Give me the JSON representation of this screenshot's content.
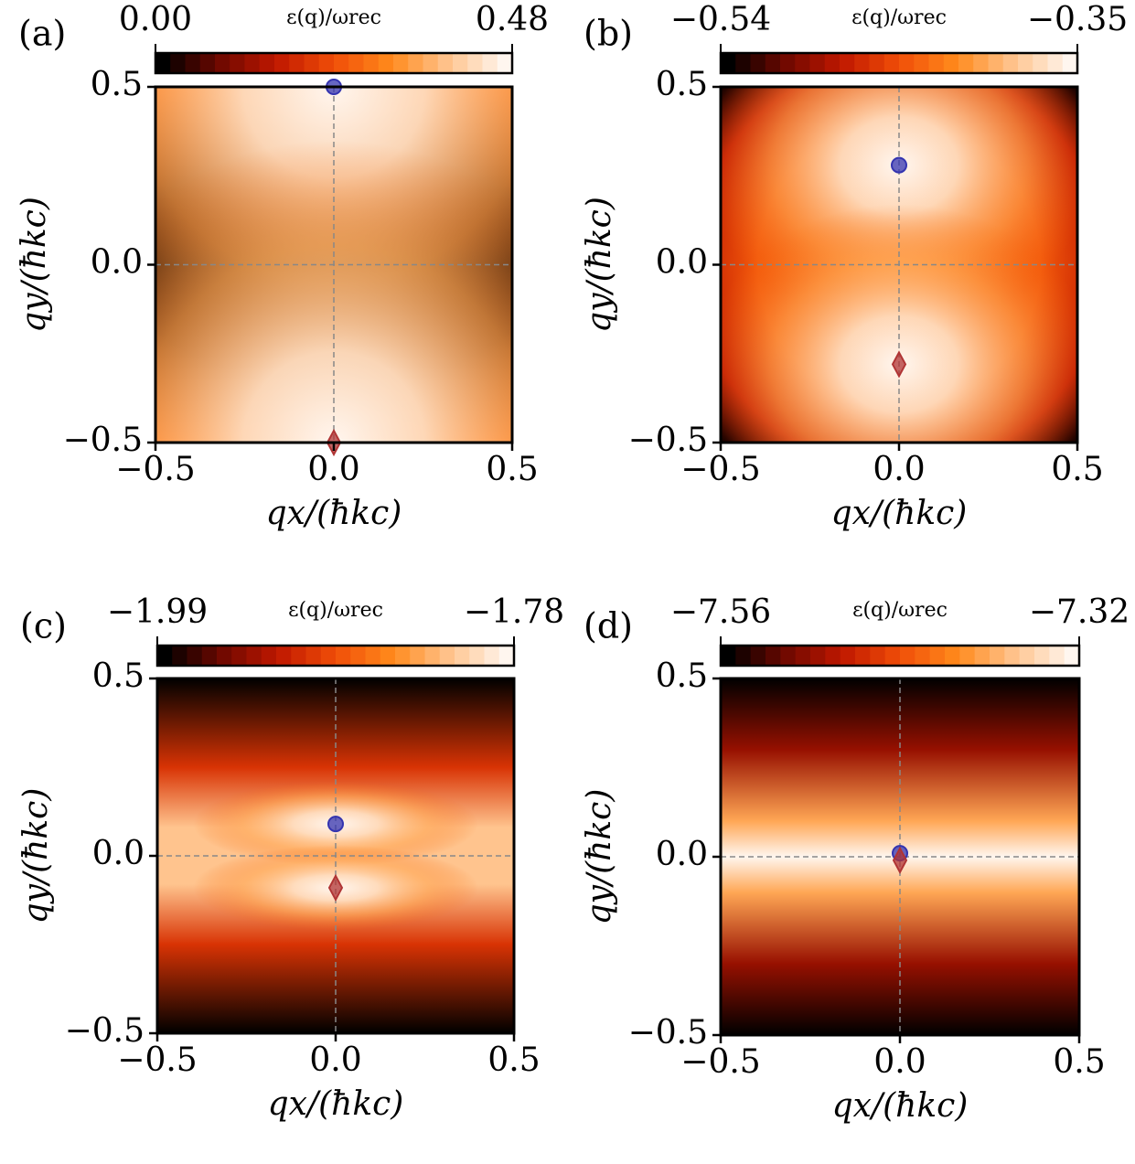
{
  "chart_data": [
    {
      "type": "contour",
      "panel_label": "(a)",
      "colorbar_label": "ε(q)/ωrec",
      "clim": [
        0,
        0.48
      ],
      "cticks": [
        {
          "value": 0,
          "label": "0.00"
        },
        {
          "value": 0.48,
          "label": "0.48"
        }
      ],
      "colormap": [
        "#000000",
        "#6e0800",
        "#c01800",
        "#f04e08",
        "#ff8a1c",
        "#ffc48e",
        "#fff6ef"
      ],
      "xlabel": "qx/(ħkc)",
      "ylabel": "qy/(ħkc)",
      "xlim": [
        -0.5,
        0.5
      ],
      "ylim": [
        -0.5,
        0.5
      ],
      "xticks": [
        {
          "value": -0.5,
          "label": "−0.5"
        },
        {
          "value": 0,
          "label": "0.0"
        },
        {
          "value": 0.5,
          "label": "0.5"
        }
      ],
      "yticks": [
        {
          "value": -0.5,
          "label": "−0.5"
        },
        {
          "value": 0,
          "label": "0.0"
        },
        {
          "value": 0.5,
          "label": "0.5"
        }
      ],
      "series": [
        {
          "marker": "circle",
          "color": "#3434b0",
          "x": [
            0
          ],
          "y": [
            0.5
          ]
        },
        {
          "marker": "diamond",
          "color": "#b03434",
          "x": [
            0
          ],
          "y": [
            -0.5
          ]
        }
      ]
    },
    {
      "type": "contour",
      "panel_label": "(b)",
      "colorbar_label": "ε(q)/ωrec",
      "clim": [
        -0.54,
        -0.35
      ],
      "cticks": [
        {
          "value": -0.54,
          "label": "−0.54"
        },
        {
          "value": -0.35,
          "label": "−0.35"
        }
      ],
      "colormap": [
        "#000000",
        "#6e0800",
        "#c01800",
        "#f04e08",
        "#ff8a1c",
        "#ffc48e",
        "#fff6ef"
      ],
      "xlabel": "qx/(ħkc)",
      "ylabel": "qy/(ħkc)",
      "xlim": [
        -0.5,
        0.5
      ],
      "ylim": [
        -0.5,
        0.5
      ],
      "xticks": [
        {
          "value": -0.5,
          "label": "−0.5"
        },
        {
          "value": 0,
          "label": "0.0"
        },
        {
          "value": 0.5,
          "label": "0.5"
        }
      ],
      "yticks": [
        {
          "value": -0.5,
          "label": "−0.5"
        },
        {
          "value": 0,
          "label": "0.0"
        },
        {
          "value": 0.5,
          "label": "0.5"
        }
      ],
      "series": [
        {
          "marker": "circle",
          "color": "#3434b0",
          "x": [
            0
          ],
          "y": [
            0.28
          ]
        },
        {
          "marker": "diamond",
          "color": "#b03434",
          "x": [
            0
          ],
          "y": [
            -0.28
          ]
        }
      ]
    },
    {
      "type": "contour",
      "panel_label": "(c)",
      "colorbar_label": "ε(q)/ωrec",
      "clim": [
        -1.99,
        -1.78
      ],
      "cticks": [
        {
          "value": -1.99,
          "label": "−1.99"
        },
        {
          "value": -1.78,
          "label": "−1.78"
        }
      ],
      "colormap": [
        "#000000",
        "#6e0800",
        "#c01800",
        "#f04e08",
        "#ff8a1c",
        "#ffc48e",
        "#fff6ef"
      ],
      "xlabel": "qx/(ħkc)",
      "ylabel": "qy/(ħkc)",
      "xlim": [
        -0.5,
        0.5
      ],
      "ylim": [
        -0.5,
        0.5
      ],
      "xticks": [
        {
          "value": -0.5,
          "label": "−0.5"
        },
        {
          "value": 0,
          "label": "0.0"
        },
        {
          "value": 0.5,
          "label": "0.5"
        }
      ],
      "yticks": [
        {
          "value": -0.5,
          "label": "−0.5"
        },
        {
          "value": 0,
          "label": "0.0"
        },
        {
          "value": 0.5,
          "label": "0.5"
        }
      ],
      "series": [
        {
          "marker": "circle",
          "color": "#3434b0",
          "x": [
            0
          ],
          "y": [
            0.09
          ]
        },
        {
          "marker": "diamond",
          "color": "#b03434",
          "x": [
            0
          ],
          "y": [
            -0.09
          ]
        }
      ]
    },
    {
      "type": "contour",
      "panel_label": "(d)",
      "colorbar_label": "ε(q)/ωrec",
      "clim": [
        -7.56,
        -7.32
      ],
      "cticks": [
        {
          "value": -7.56,
          "label": "−7.56"
        },
        {
          "value": -7.32,
          "label": "−7.32"
        }
      ],
      "colormap": [
        "#000000",
        "#6e0800",
        "#c01800",
        "#f04e08",
        "#ff8a1c",
        "#ffc48e",
        "#fff6ef"
      ],
      "xlabel": "qx/(ħkc)",
      "ylabel": "qy/(ħkc)",
      "xlim": [
        -0.5,
        0.5
      ],
      "ylim": [
        -0.5,
        0.5
      ],
      "xticks": [
        {
          "value": -0.5,
          "label": "−0.5"
        },
        {
          "value": 0,
          "label": "0.0"
        },
        {
          "value": 0.5,
          "label": "0.5"
        }
      ],
      "yticks": [
        {
          "value": -0.5,
          "label": "−0.5"
        },
        {
          "value": 0,
          "label": "0.0"
        },
        {
          "value": 0.5,
          "label": "0.5"
        }
      ],
      "series": [
        {
          "marker": "circle",
          "color": "#3434b0",
          "x": [
            0
          ],
          "y": [
            0.01
          ]
        },
        {
          "marker": "diamond",
          "color": "#b03434",
          "x": [
            0
          ],
          "y": [
            -0.01
          ]
        }
      ]
    }
  ]
}
